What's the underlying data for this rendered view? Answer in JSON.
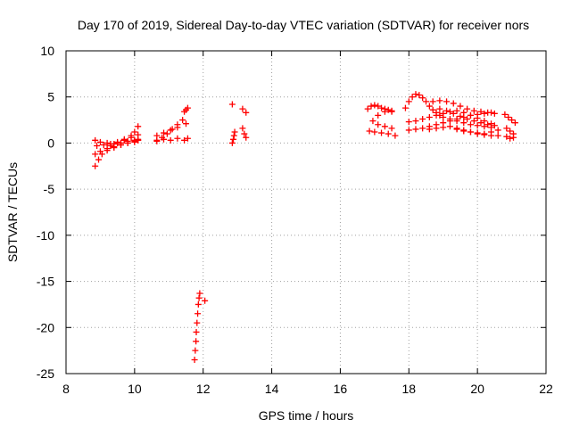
{
  "chart_data": {
    "type": "scatter",
    "title": "Day 170 of 2019, Sidereal Day-to-day VTEC variation (SDTVAR) for receiver nors",
    "xlabel": "GPS time / hours",
    "ylabel": "SDTVAR / TECUs",
    "xlim": [
      8,
      22
    ],
    "ylim": [
      -25,
      10
    ],
    "xticks": [
      "8",
      "10",
      "12",
      "14",
      "16",
      "18",
      "20",
      "22"
    ],
    "yticks": [
      "10",
      "5",
      "0",
      "-5",
      "-10",
      "-15",
      "-20",
      "-25"
    ],
    "grid": true,
    "marker": "plus",
    "color": "#ff0000",
    "tracks": [
      {
        "x": [
          8.85,
          8.95,
          9.05,
          9.2,
          9.4,
          9.6,
          9.8,
          10.0,
          10.1
        ],
        "y": [
          -2.5,
          -1.8,
          -1.2,
          -0.8,
          -0.5,
          -0.2,
          0.0,
          0.1,
          0.3
        ]
      },
      {
        "x": [
          8.85,
          9.0,
          9.2,
          9.4,
          9.6,
          9.8,
          10.0,
          10.1
        ],
        "y": [
          -1.2,
          -0.9,
          -0.6,
          -0.4,
          -0.2,
          0.0,
          0.2,
          0.3
        ]
      },
      {
        "x": [
          8.85,
          9.0,
          9.2,
          9.4,
          9.6,
          9.8,
          10.0,
          10.1
        ],
        "y": [
          0.3,
          0.1,
          0.0,
          -0.1,
          0.0,
          0.2,
          0.3,
          0.4
        ]
      },
      {
        "x": [
          8.9,
          9.1,
          9.3,
          9.5,
          9.7,
          9.9,
          10.0,
          10.1
        ],
        "y": [
          -0.3,
          -0.2,
          -0.1,
          0.1,
          0.4,
          0.8,
          1.2,
          1.8
        ]
      },
      {
        "x": [
          9.3,
          9.5,
          9.7,
          9.9,
          10.1
        ],
        "y": [
          -0.3,
          0.0,
          0.3,
          0.6,
          0.9
        ]
      },
      {
        "x": [
          10.65,
          10.8,
          10.95,
          11.1,
          11.25,
          11.4
        ],
        "y": [
          0.2,
          0.6,
          1.0,
          1.5,
          2.0,
          2.5
        ]
      },
      {
        "x": [
          10.65,
          10.85,
          11.05,
          11.25
        ],
        "y": [
          0.8,
          1.1,
          1.4,
          1.7
        ]
      },
      {
        "x": [
          10.65,
          10.85,
          11.05,
          11.25
        ],
        "y": [
          0.3,
          0.4,
          0.3,
          0.5
        ]
      },
      {
        "x": [
          11.45,
          11.5,
          11.55
        ],
        "y": [
          3.4,
          3.6,
          3.8
        ]
      },
      {
        "x": [
          11.5
        ],
        "y": [
          2.1
        ]
      },
      {
        "x": [
          11.45,
          11.55
        ],
        "y": [
          0.3,
          0.5
        ]
      },
      {
        "x": [
          12.85,
          12.88,
          12.9,
          12.92
        ],
        "y": [
          0.0,
          0.4,
          0.8,
          1.2
        ]
      },
      {
        "x": [
          12.85
        ],
        "y": [
          4.2
        ]
      },
      {
        "x": [
          13.15,
          13.25
        ],
        "y": [
          3.7,
          3.3
        ]
      },
      {
        "x": [
          13.15,
          13.2,
          13.25
        ],
        "y": [
          1.6,
          1.0,
          0.6
        ]
      },
      {
        "x": [
          11.75,
          11.77,
          11.79,
          11.8,
          11.82,
          11.84,
          11.86,
          11.88,
          11.9
        ],
        "y": [
          -23.5,
          -22.5,
          -21.5,
          -20.5,
          -19.5,
          -18.5,
          -17.5,
          -16.8,
          -16.3
        ]
      },
      {
        "x": [
          12.05
        ],
        "y": [
          -17.1
        ]
      },
      {
        "x": [
          16.8,
          16.9,
          17.0,
          17.1,
          17.2,
          17.3,
          17.4,
          17.5
        ],
        "y": [
          3.7,
          4.0,
          4.1,
          4.0,
          3.8,
          3.7,
          3.6,
          3.4
        ]
      },
      {
        "x": [
          16.85,
          17.0,
          17.2,
          17.4,
          17.6
        ],
        "y": [
          1.3,
          1.2,
          1.1,
          1.0,
          0.8
        ]
      },
      {
        "x": [
          17.5,
          17.3,
          17.1,
          16.95,
          17.1,
          17.3,
          17.5
        ],
        "y": [
          3.5,
          3.4,
          3.0,
          2.4,
          2.0,
          1.8,
          1.6
        ]
      },
      {
        "x": [
          17.9,
          18.0,
          18.1,
          18.2,
          18.3,
          18.4,
          18.5,
          18.6,
          18.7,
          18.8,
          18.9,
          19.0,
          19.2,
          19.4,
          19.6,
          19.8,
          20.0,
          20.2,
          20.4
        ],
        "y": [
          3.8,
          4.5,
          5.0,
          5.3,
          5.2,
          4.9,
          4.5,
          4.0,
          3.6,
          3.3,
          3.0,
          2.8,
          2.6,
          2.4,
          2.2,
          2.0,
          1.9,
          1.8,
          1.7
        ]
      },
      {
        "x": [
          18.0,
          18.2,
          18.4,
          18.6,
          18.8,
          19.0,
          19.2,
          19.4,
          19.6,
          19.8,
          20.0,
          20.2,
          20.4
        ],
        "y": [
          2.3,
          2.4,
          2.6,
          2.8,
          3.0,
          3.2,
          3.4,
          3.5,
          3.3,
          3.0,
          2.7,
          2.4,
          2.1
        ]
      },
      {
        "x": [
          18.0,
          18.2,
          18.4,
          18.6,
          18.8,
          19.0,
          19.2,
          19.4,
          19.6,
          19.8,
          20.0,
          20.2,
          20.4
        ],
        "y": [
          1.4,
          1.5,
          1.6,
          1.8,
          2.0,
          2.2,
          2.4,
          2.6,
          2.8,
          3.0,
          3.1,
          3.2,
          3.3
        ]
      },
      {
        "x": [
          18.7,
          18.9,
          19.1,
          19.3,
          19.5,
          19.7,
          19.9,
          20.1,
          20.3,
          20.5
        ],
        "y": [
          4.5,
          4.6,
          4.5,
          4.3,
          4.0,
          3.7,
          3.5,
          3.4,
          3.3,
          3.2
        ]
      },
      {
        "x": [
          18.6,
          18.8,
          19.0,
          19.2,
          19.4,
          19.6,
          19.8,
          20.0,
          20.2,
          20.4,
          20.6
        ],
        "y": [
          1.5,
          1.6,
          1.7,
          1.8,
          1.6,
          1.4,
          1.2,
          1.0,
          0.9,
          0.8,
          0.8
        ]
      },
      {
        "x": [
          18.9,
          19.1,
          19.3,
          19.5,
          19.7,
          19.9,
          20.1,
          20.3,
          20.5
        ],
        "y": [
          3.7,
          3.5,
          3.2,
          2.9,
          2.6,
          2.4,
          2.2,
          2.0,
          1.9
        ]
      },
      {
        "x": [
          19.4,
          19.6,
          19.8,
          20.0,
          20.2,
          20.4,
          20.6
        ],
        "y": [
          1.5,
          1.3,
          1.2,
          1.1,
          1.0,
          1.2,
          1.4
        ]
      },
      {
        "x": [
          20.8,
          20.9,
          21.0,
          21.1
        ],
        "y": [
          3.1,
          2.8,
          2.5,
          2.2
        ]
      },
      {
        "x": [
          20.85,
          20.95,
          21.05
        ],
        "y": [
          1.6,
          1.3,
          1.0
        ]
      },
      {
        "x": [
          20.85,
          20.95,
          21.05
        ],
        "y": [
          0.7,
          0.5,
          0.6
        ]
      }
    ]
  }
}
